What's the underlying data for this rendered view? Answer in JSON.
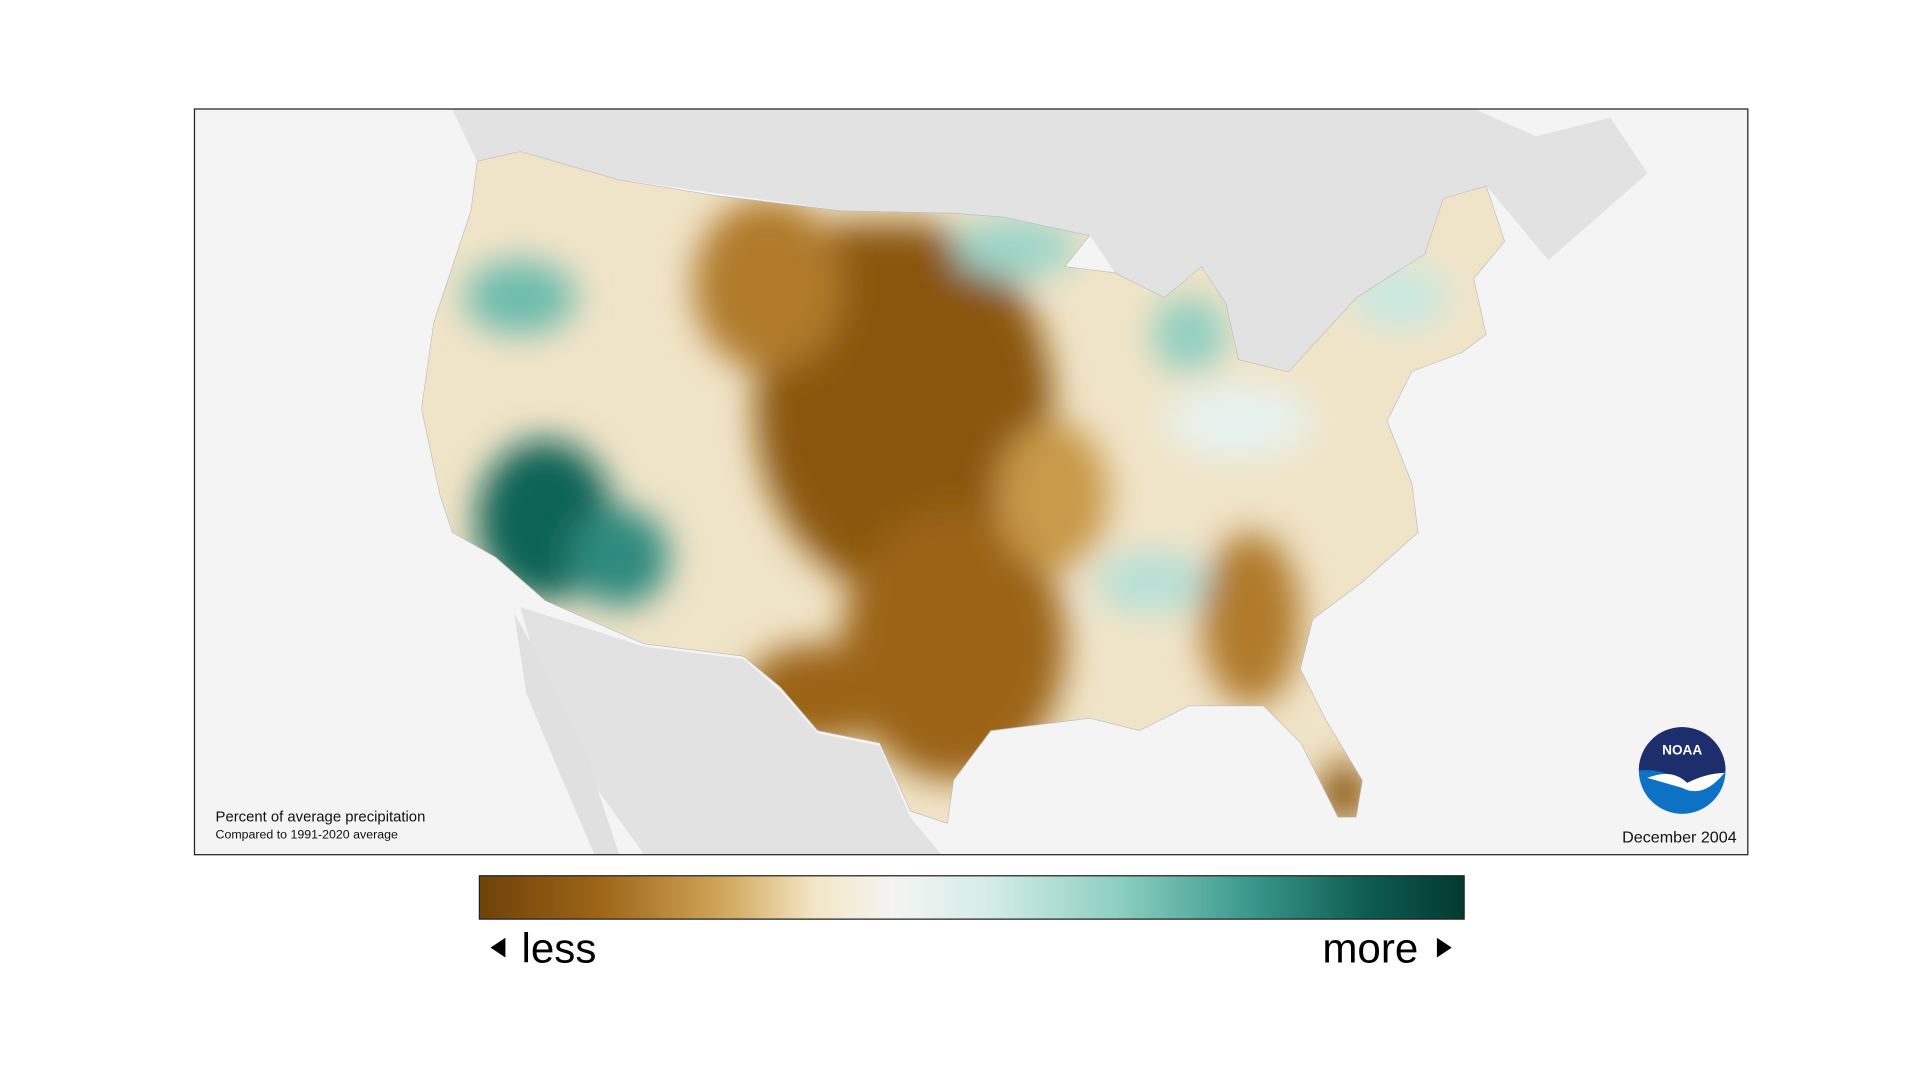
{
  "map": {
    "note_title": "Percent of average precipitation",
    "note_subtitle": "Compared to 1991-2020 average",
    "date": "December 2004",
    "logo": "NOAA"
  },
  "legend": {
    "low_label": "less",
    "high_label": "more"
  }
}
